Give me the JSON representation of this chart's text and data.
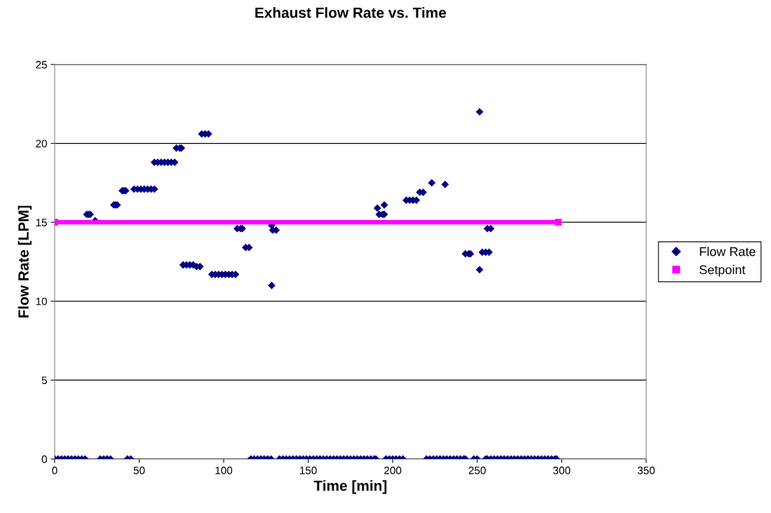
{
  "chart_data": {
    "type": "scatter",
    "title": "Exhaust Flow Rate vs. Time",
    "xlabel": "Time [min]",
    "ylabel": "Flow Rate [LPM]",
    "xlim": [
      0,
      350
    ],
    "xticks": [
      0,
      50,
      100,
      150,
      200,
      250,
      300,
      350
    ],
    "ylim": [
      0,
      25
    ],
    "yticks": [
      0,
      5,
      10,
      15,
      20,
      25
    ],
    "grid": "y",
    "legend": "right",
    "series": [
      {
        "name": "Flow Rate",
        "marker": "diamond",
        "color": "#000080",
        "x": [
          0,
          2,
          4,
          6,
          8,
          10,
          12,
          14,
          16,
          18,
          19,
          20,
          21,
          24,
          27,
          29,
          31,
          33,
          35,
          36,
          37,
          40,
          41,
          42,
          43,
          45,
          47,
          49,
          51,
          53,
          55,
          57,
          59,
          59,
          61,
          63,
          65,
          67,
          69,
          71,
          72,
          74,
          75,
          76,
          78,
          80,
          82,
          84,
          86,
          87,
          89,
          91,
          93,
          95,
          97,
          99,
          101,
          103,
          105,
          107,
          108,
          110,
          111,
          113,
          115,
          116,
          118,
          120,
          122,
          124,
          126,
          128,
          128.4,
          128.4,
          129,
          131,
          133,
          135,
          137,
          139,
          141,
          143,
          145,
          147,
          149,
          151,
          153,
          155,
          157,
          159,
          161,
          163,
          165,
          167,
          169,
          171,
          173,
          175,
          177,
          179,
          181,
          183,
          185,
          187,
          189,
          190,
          190.9,
          192,
          194,
          195,
          195,
          196,
          198,
          200,
          202,
          204,
          206,
          208,
          210,
          212,
          214,
          216,
          218,
          223.1,
          231,
          220,
          222,
          224,
          226,
          228,
          230,
          232,
          234,
          236,
          238,
          240,
          242,
          243,
          243,
          245,
          246,
          248,
          250,
          251.4,
          251.4,
          253,
          255,
          257,
          255,
          256,
          258,
          256,
          258,
          260,
          262,
          264,
          266,
          268,
          270,
          272,
          274,
          276,
          278,
          280,
          282,
          284,
          286,
          288,
          290,
          292,
          294,
          296,
          297
        ],
        "values": [
          0,
          0,
          0,
          0,
          0,
          0,
          0,
          0,
          0,
          0,
          15.5,
          15.5,
          15.5,
          15.1,
          0,
          0,
          0,
          0,
          16.1,
          16.1,
          16.1,
          17.0,
          17.0,
          17.0,
          0,
          0,
          17.1,
          17.1,
          17.1,
          17.1,
          17.1,
          17.1,
          17.1,
          18.8,
          18.8,
          18.8,
          18.8,
          18.8,
          18.8,
          18.8,
          19.7,
          19.7,
          19.7,
          12.3,
          12.3,
          12.3,
          12.3,
          12.2,
          12.2,
          20.6,
          20.6,
          20.6,
          11.7,
          11.7,
          11.7,
          11.7,
          11.7,
          11.7,
          11.7,
          11.7,
          14.6,
          14.6,
          14.6,
          13.4,
          13.4,
          0,
          0,
          0,
          0,
          0,
          0,
          0,
          11.0,
          14.8,
          14.5,
          14.5,
          0,
          0,
          0,
          0,
          0,
          0,
          0,
          0,
          0,
          0,
          0,
          0,
          0,
          0,
          0,
          0,
          0,
          0,
          0,
          0,
          0,
          0,
          0,
          0,
          0,
          0,
          0,
          0,
          0,
          0,
          15.9,
          15.5,
          15.5,
          15.5,
          16.1,
          0,
          0,
          0,
          0,
          0,
          0,
          16.4,
          16.4,
          16.4,
          16.4,
          16.9,
          16.9,
          17.5,
          17.4,
          0,
          0,
          0,
          0,
          0,
          0,
          0,
          0,
          0,
          0,
          0,
          0,
          0,
          13.0,
          13.0,
          13.0,
          0,
          0,
          22.0,
          12.0,
          13.1,
          13.1,
          13.1,
          0,
          14.6,
          14.6,
          0,
          0,
          0,
          0,
          0,
          0,
          0,
          0,
          0,
          0,
          0,
          0,
          0,
          0,
          0,
          0,
          0,
          0,
          0,
          0,
          0,
          0
        ]
      },
      {
        "name": "Setpoint",
        "type": "line",
        "marker": "square",
        "color": "#ff00ff",
        "x": [
          0,
          298
        ],
        "values": [
          15,
          15
        ]
      }
    ]
  }
}
